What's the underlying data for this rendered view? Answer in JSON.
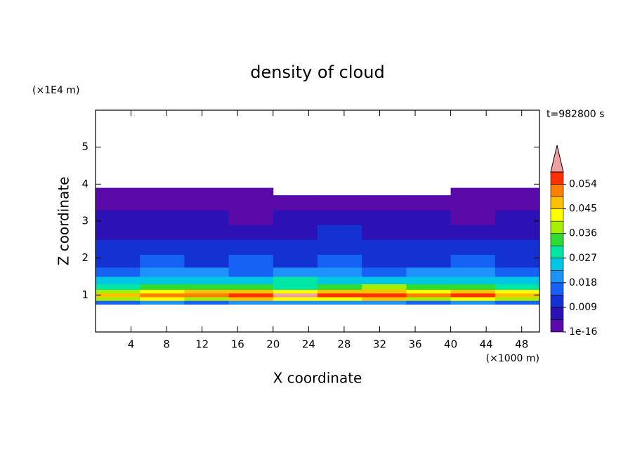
{
  "chart_data": {
    "type": "contour",
    "title": "density of cloud",
    "x_label": "X coordinate",
    "y_label": "Z coordinate",
    "x_unit": "(×1000 m)",
    "y_unit": "(×1E4 m)",
    "annotation": "t=982800 s",
    "xlim": [
      0,
      50
    ],
    "ylim": [
      0,
      6
    ],
    "xticks": [
      4,
      8,
      12,
      16,
      20,
      24,
      28,
      32,
      36,
      40,
      44,
      48
    ],
    "yticks": [
      1,
      2,
      3,
      4,
      5
    ],
    "xbins": [
      0,
      5,
      10,
      15,
      20,
      25,
      30,
      35,
      40,
      45,
      50
    ],
    "zbins": [
      0.75,
      0.85,
      0.95,
      1.05,
      1.15,
      1.3,
      1.5,
      1.75,
      2.1,
      2.5,
      2.9,
      3.3,
      3.7,
      3.9
    ],
    "values": [
      [
        0.016,
        0.018,
        0.017,
        0.02,
        0.019,
        0.018,
        0.02,
        0.017,
        0.019,
        0.016
      ],
      [
        0.038,
        0.042,
        0.04,
        0.046,
        0.044,
        0.041,
        0.045,
        0.04,
        0.043,
        0.039
      ],
      [
        0.048,
        0.052,
        0.05,
        0.056,
        0.059,
        0.055,
        0.057,
        0.051,
        0.054,
        0.049
      ],
      [
        0.04,
        0.043,
        0.045,
        0.047,
        0.044,
        0.046,
        0.048,
        0.043,
        0.045,
        0.041
      ],
      [
        0.03,
        0.033,
        0.032,
        0.035,
        0.031,
        0.034,
        0.036,
        0.032,
        0.033,
        0.03
      ],
      [
        0.024,
        0.026,
        0.025,
        0.023,
        0.027,
        0.025,
        0.024,
        0.026,
        0.025,
        0.023
      ],
      [
        0.017,
        0.019,
        0.018,
        0.016,
        0.02,
        0.018,
        0.017,
        0.019,
        0.018,
        0.016
      ],
      [
        0.012,
        0.014,
        0.013,
        0.015,
        0.013,
        0.014,
        0.012,
        0.013,
        0.014,
        0.012
      ],
      [
        0.009,
        0.011,
        0.01,
        0.012,
        0.01,
        0.011,
        0.013,
        0.01,
        0.011,
        0.009
      ],
      [
        0.006,
        0.007,
        0.008,
        0.006,
        0.007,
        0.009,
        0.007,
        0.006,
        0.008,
        0.007
      ],
      [
        0.005,
        0.006,
        0.005,
        0.004,
        0.005,
        0.006,
        0.005,
        0.005,
        0.004,
        0.005
      ],
      [
        0.003,
        0.002,
        0.004,
        0.003,
        0.002,
        0.003,
        0.002,
        0.003,
        0.002,
        0.003
      ],
      [
        0.001,
        0.001,
        0.002,
        0.001,
        null,
        null,
        null,
        null,
        0.001,
        0.001
      ]
    ],
    "colorbar": {
      "levels": [
        1e-16,
        0.0045,
        0.009,
        0.0135,
        0.018,
        0.0225,
        0.027,
        0.0315,
        0.036,
        0.0405,
        0.045,
        0.0495,
        0.054,
        0.0585
      ],
      "colors": [
        "#5a0aa8",
        "#2c12b4",
        "#1432d2",
        "#1662f5",
        "#1c92fa",
        "#00c6e6",
        "#00e6a4",
        "#30dc30",
        "#a8ee00",
        "#ffff00",
        "#ffc000",
        "#ff8000",
        "#ff3000"
      ],
      "extend_color": "#f0a0a0",
      "ticks": [
        {
          "value": 1e-16,
          "label": "1e-16"
        },
        0.009,
        0.018,
        0.027,
        0.036,
        0.045,
        0.054
      ]
    }
  }
}
